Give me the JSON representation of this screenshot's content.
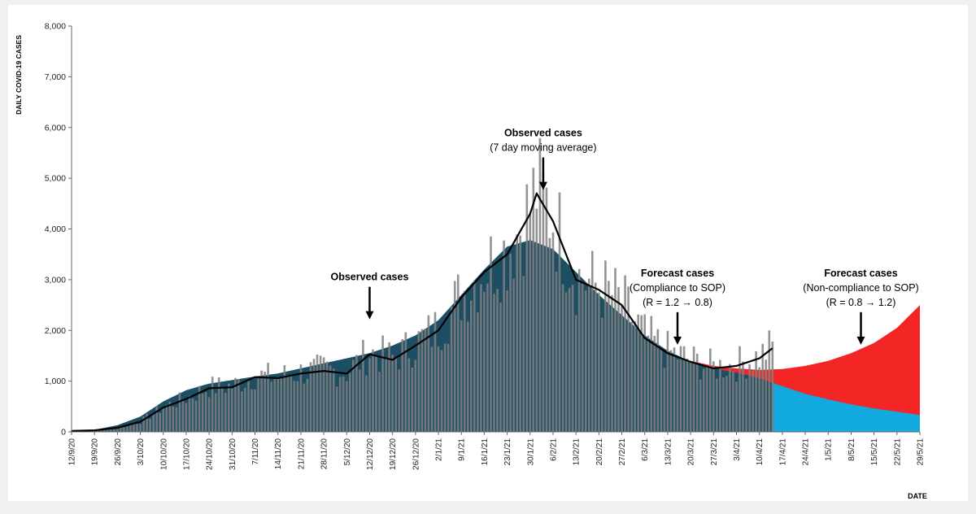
{
  "chart_data": {
    "type": "bar",
    "ylabel": "DAILY COVID-19 CASES",
    "xlabel": "DATE",
    "ylim": [
      0,
      8000
    ],
    "yticks": [
      0,
      1000,
      2000,
      3000,
      4000,
      5000,
      6000,
      7000,
      8000
    ],
    "ytick_labels": [
      "0",
      "1,000",
      "2,000",
      "3,000",
      "4,000",
      "5,000",
      "6,000",
      "7,000",
      "8,000"
    ],
    "x_start": "2020-09-12",
    "x_end": "2021-05-29",
    "xtick_labels": [
      "12/9/20",
      "19/9/20",
      "26/9/20",
      "3/10/20",
      "10/10/20",
      "17/10/20",
      "24/10/20",
      "31/10/20",
      "7/11/20",
      "14/11/20",
      "21/11/20",
      "28/11/20",
      "5/12/20",
      "12/12/20",
      "19/12/20",
      "26/12/20",
      "2/1/21",
      "9/1/21",
      "16/1/21",
      "23/1/21",
      "30/1/21",
      "6/2/21",
      "13/2/21",
      "20/2/21",
      "27/2/21",
      "6/3/21",
      "13/3/21",
      "20/3/21",
      "27/3/21",
      "3/4/21",
      "10/4/21",
      "17/4/21",
      "24/4/21",
      "1/5/21",
      "8/5/21",
      "15/5/21",
      "22/5/21",
      "29/5/21"
    ],
    "grid": false,
    "observed_end_date": "2021-04-14",
    "colors": {
      "daily_bars": "#808080",
      "observed_fill": "#1e4e63",
      "observed_series": "#000000",
      "forecast_compliance": "#12a8e0",
      "forecast_noncompliance": "#f42525"
    },
    "series": [
      {
        "kind": "area",
        "color": "#12a8e0",
        "points": [
          [
            "2020-09-12",
            0
          ],
          [
            "2020-09-19",
            40
          ],
          [
            "2020-09-26",
            130
          ],
          [
            "2020-10-03",
            300
          ],
          [
            "2020-10-10",
            600
          ],
          [
            "2020-10-17",
            820
          ],
          [
            "2020-10-24",
            950
          ],
          [
            "2020-10-31",
            1020
          ],
          [
            "2020-11-07",
            1090
          ],
          [
            "2020-11-14",
            1150
          ],
          [
            "2020-11-21",
            1250
          ],
          [
            "2020-11-28",
            1350
          ],
          [
            "2020-12-05",
            1450
          ],
          [
            "2020-12-12",
            1550
          ],
          [
            "2020-12-19",
            1700
          ],
          [
            "2020-12-26",
            1900
          ],
          [
            "2021-01-02",
            2200
          ],
          [
            "2021-01-09",
            2700
          ],
          [
            "2021-01-16",
            3200
          ],
          [
            "2021-01-23",
            3650
          ],
          [
            "2021-01-30",
            3780
          ],
          [
            "2021-02-06",
            3600
          ],
          [
            "2021-02-13",
            3150
          ],
          [
            "2021-02-20",
            2700
          ],
          [
            "2021-02-27",
            2300
          ],
          [
            "2021-03-06",
            1900
          ],
          [
            "2021-03-13",
            1600
          ],
          [
            "2021-03-20",
            1380
          ],
          [
            "2021-03-27",
            1250
          ],
          [
            "2021-04-03",
            1170
          ],
          [
            "2021-04-10",
            1060
          ],
          [
            "2021-04-17",
            900
          ],
          [
            "2021-04-24",
            750
          ],
          [
            "2021-05-01",
            640
          ],
          [
            "2021-05-08",
            540
          ],
          [
            "2021-05-15",
            460
          ],
          [
            "2021-05-22",
            400
          ],
          [
            "2021-05-29",
            330
          ]
        ]
      },
      {
        "kind": "area",
        "color": "#f42525",
        "points": [
          [
            "2021-03-20",
            1400
          ],
          [
            "2021-03-27",
            1300
          ],
          [
            "2021-04-03",
            1250
          ],
          [
            "2021-04-10",
            1220
          ],
          [
            "2021-04-17",
            1240
          ],
          [
            "2021-04-24",
            1300
          ],
          [
            "2021-05-01",
            1400
          ],
          [
            "2021-05-08",
            1550
          ],
          [
            "2021-05-15",
            1750
          ],
          [
            "2021-05-22",
            2050
          ],
          [
            "2021-05-29",
            2500
          ]
        ]
      },
      {
        "kind": "line",
        "color": "#000000",
        "points": [
          [
            "2020-09-12",
            20
          ],
          [
            "2020-09-19",
            30
          ],
          [
            "2020-09-26",
            80
          ],
          [
            "2020-10-03",
            200
          ],
          [
            "2020-10-10",
            480
          ],
          [
            "2020-10-17",
            650
          ],
          [
            "2020-10-24",
            860
          ],
          [
            "2020-10-31",
            880
          ],
          [
            "2020-11-07",
            1080
          ],
          [
            "2020-11-14",
            1060
          ],
          [
            "2020-11-21",
            1150
          ],
          [
            "2020-11-28",
            1200
          ],
          [
            "2020-12-05",
            1150
          ],
          [
            "2020-12-12",
            1530
          ],
          [
            "2020-12-19",
            1420
          ],
          [
            "2020-12-26",
            1700
          ],
          [
            "2021-01-02",
            2000
          ],
          [
            "2021-01-09",
            2650
          ],
          [
            "2021-01-16",
            3150
          ],
          [
            "2021-01-23",
            3500
          ],
          [
            "2021-01-30",
            4300
          ],
          [
            "2021-02-01",
            4700
          ],
          [
            "2021-02-06",
            4150
          ],
          [
            "2021-02-13",
            3000
          ],
          [
            "2021-02-20",
            2800
          ],
          [
            "2021-02-27",
            2500
          ],
          [
            "2021-03-06",
            1850
          ],
          [
            "2021-03-13",
            1550
          ],
          [
            "2021-03-20",
            1380
          ],
          [
            "2021-03-27",
            1250
          ],
          [
            "2021-04-03",
            1300
          ],
          [
            "2021-04-10",
            1450
          ],
          [
            "2021-04-14",
            1650
          ]
        ]
      }
    ],
    "annotations": [
      {
        "lines": [
          "Observed cases"
        ],
        "date": "2020-12-12",
        "value": 2250
      },
      {
        "lines": [
          "Observed cases",
          "(7 day moving average)"
        ],
        "date": "2021-02-03",
        "value": 4800
      },
      {
        "lines": [
          "Forecast cases",
          "(Compliance to SOP)",
          "(R = 1.2 → 0.8)"
        ],
        "date": "2021-03-16",
        "value": 1750
      },
      {
        "lines": [
          "Forecast cases",
          "(Non-compliance to SOP)",
          "(R = 0.8 → 1.2)"
        ],
        "date": "2021-05-11",
        "value": 1750
      }
    ]
  }
}
